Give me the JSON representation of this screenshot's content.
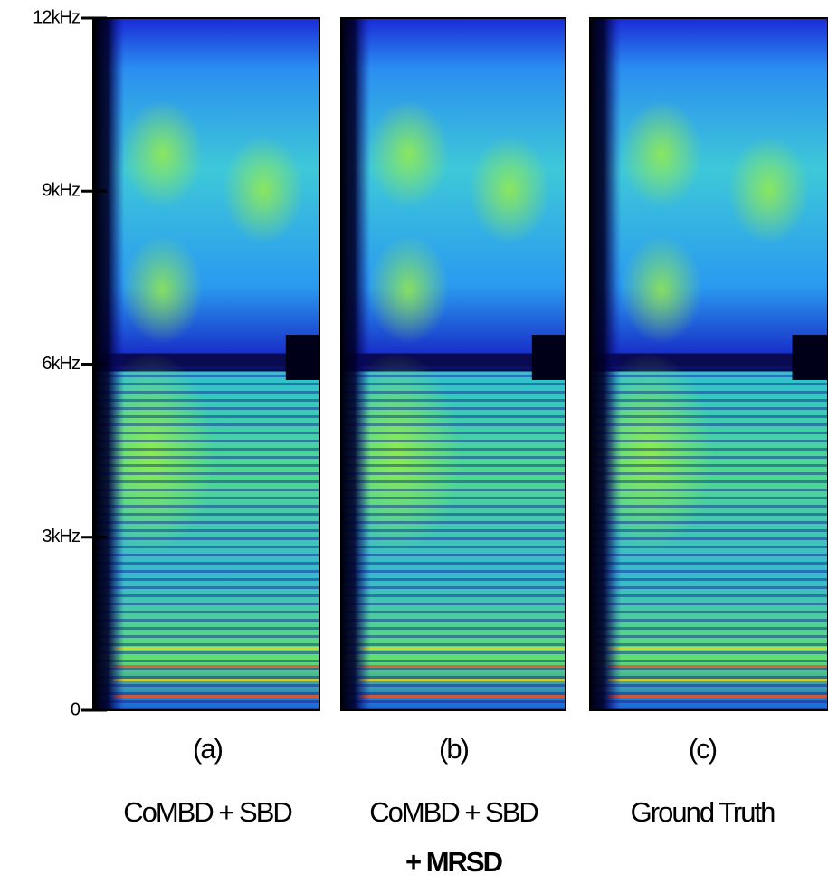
{
  "figure": {
    "ylim": [
      0,
      12
    ],
    "yticks": [
      0,
      {
        "value": 3,
        "label": "3kHz"
      },
      {
        "value": 6,
        "label": "6kHz"
      },
      {
        "value": 9,
        "label": "9kHz"
      },
      {
        "value": 12,
        "label": "12kHz"
      }
    ],
    "panels": [
      {
        "letter": "(a)",
        "caption": "CoMBD + SBD"
      },
      {
        "letter": "(b)",
        "caption": "CoMBD + SBD",
        "caption_bold": "+ MRSD"
      },
      {
        "letter": "(c)",
        "caption": "Ground Truth"
      }
    ]
  }
}
